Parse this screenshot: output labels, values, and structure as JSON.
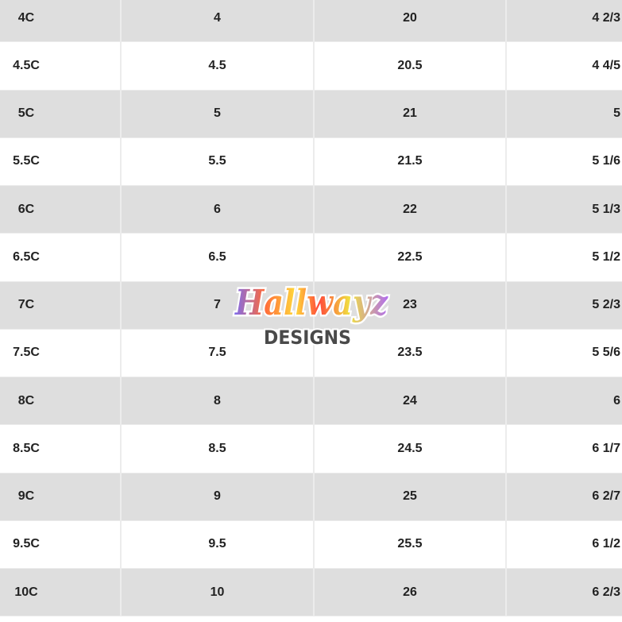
{
  "table": {
    "rows": [
      [
        "4C",
        "4",
        "20",
        "4 2/3"
      ],
      [
        "4.5C",
        "4.5",
        "20.5",
        "4 4/5"
      ],
      [
        "5C",
        "5",
        "21",
        "5"
      ],
      [
        "5.5C",
        "5.5",
        "21.5",
        "5 1/6"
      ],
      [
        "6C",
        "6",
        "22",
        "5 1/3"
      ],
      [
        "6.5C",
        "6.5",
        "22.5",
        "5 1/2"
      ],
      [
        "7C",
        "7",
        "23",
        "5 2/3"
      ],
      [
        "7.5C",
        "7.5",
        "23.5",
        "5 5/6"
      ],
      [
        "8C",
        "8",
        "24",
        "6"
      ],
      [
        "8.5C",
        "8.5",
        "24.5",
        "6 1/7"
      ],
      [
        "9C",
        "9",
        "25",
        "6 2/7"
      ],
      [
        "9.5C",
        "9.5",
        "25.5",
        "6 1/2"
      ],
      [
        "10C",
        "10",
        "26",
        "6 2/3"
      ]
    ]
  },
  "watermark": {
    "script_text": "Hallwayz",
    "sub_text": "DESIGNS"
  },
  "colors": {
    "row_gray": "#dedede",
    "row_white": "#ffffff",
    "text": "#222222"
  }
}
